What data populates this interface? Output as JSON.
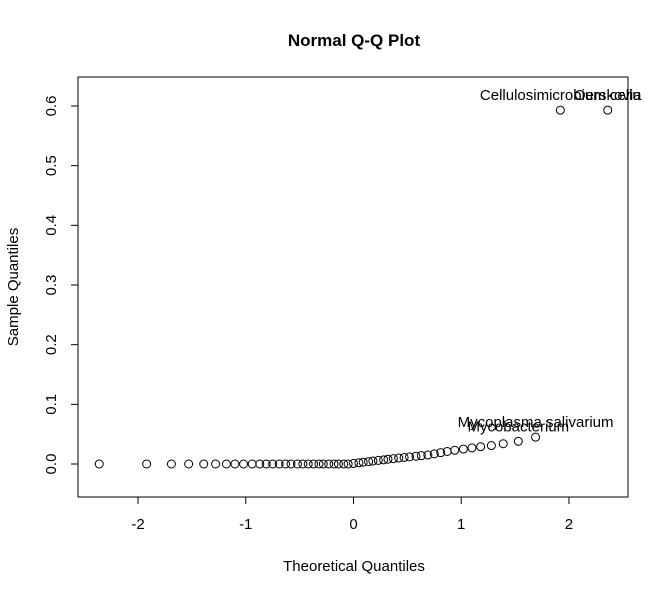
{
  "chart_data": {
    "type": "scatter",
    "title": "Normal Q-Q Plot",
    "x_label": "Theoretical Quantiles",
    "y_label": "Sample Quantiles",
    "x": [
      -2.36,
      -1.92,
      -1.69,
      -1.53,
      -1.39,
      -1.28,
      -1.18,
      -1.1,
      -1.02,
      -0.94,
      -0.87,
      -0.81,
      -0.75,
      -0.69,
      -0.63,
      -0.58,
      -0.52,
      -0.47,
      -0.42,
      -0.37,
      -0.32,
      -0.28,
      -0.23,
      -0.18,
      -0.14,
      -0.09,
      -0.05,
      0,
      0.05,
      0.09,
      0.14,
      0.18,
      0.23,
      0.28,
      0.32,
      0.37,
      0.42,
      0.47,
      0.52,
      0.58,
      0.63,
      0.69,
      0.75,
      0.81,
      0.87,
      0.94,
      1.02,
      1.1,
      1.18,
      1.28,
      1.39,
      1.53,
      1.69,
      1.92,
      2.36
    ],
    "values": [
      0,
      0,
      0,
      0,
      0,
      0,
      0,
      0,
      0,
      0,
      0,
      0,
      0,
      0,
      0,
      0,
      0,
      0,
      0,
      0,
      0,
      0,
      0,
      0,
      0,
      0,
      0,
      0.001,
      0.002,
      0.003,
      0.004,
      0.005,
      0.006,
      0.007,
      0.008,
      0.009,
      0.01,
      0.011,
      0.012,
      0.013,
      0.014,
      0.015,
      0.017,
      0.019,
      0.021,
      0.023,
      0.025,
      0.027,
      0.029,
      0.031,
      0.034,
      0.038,
      0.045,
      0.593,
      0.593
    ],
    "labels": [
      null,
      null,
      null,
      null,
      null,
      null,
      null,
      null,
      null,
      null,
      null,
      null,
      null,
      null,
      null,
      null,
      null,
      null,
      null,
      null,
      null,
      null,
      null,
      null,
      null,
      null,
      null,
      null,
      null,
      null,
      null,
      null,
      null,
      null,
      null,
      null,
      null,
      null,
      null,
      null,
      null,
      null,
      null,
      null,
      null,
      null,
      null,
      null,
      null,
      null,
      null,
      "Mycobacterium",
      "Mycoplasma salivarium",
      "Cellulosimicrobium cellu",
      "Oerskovia"
    ],
    "xlim": [
      -2.557,
      2.548
    ],
    "ylim": [
      -0.0553,
      0.6486
    ],
    "xticks": [
      -2,
      -1,
      0,
      1,
      2
    ],
    "yticks": [
      0.0,
      0.1,
      0.2,
      0.3,
      0.4,
      0.5,
      0.6
    ],
    "color": "#000000"
  }
}
